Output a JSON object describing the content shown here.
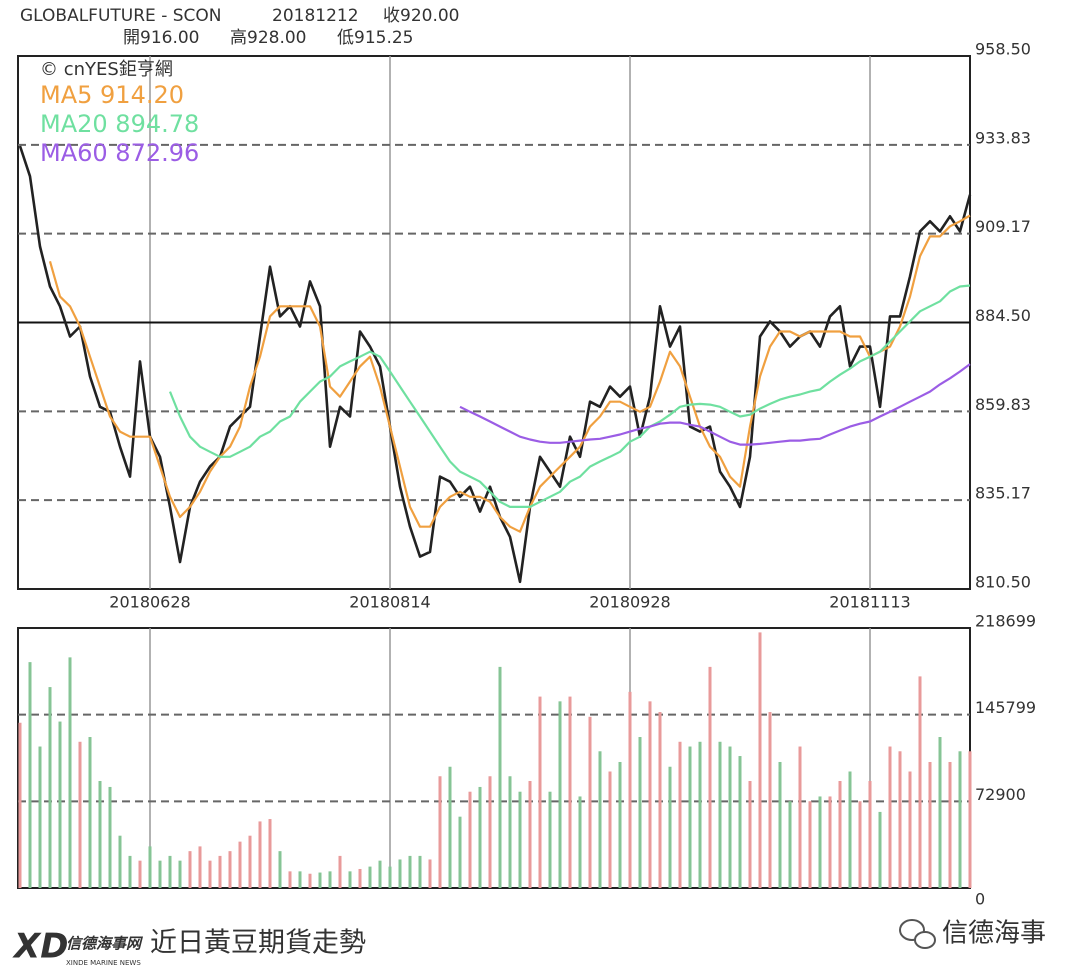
{
  "header": {
    "symbol": "GLOBALFUTURE - SCON",
    "date": "20181212",
    "close": "收920.00",
    "open": "開916.00",
    "high": "高928.00",
    "low": "低915.25"
  },
  "chart_data": [
    {
      "type": "line",
      "source": "© cnYES鉅亨網",
      "categories": [
        null,
        null,
        null,
        null,
        null,
        null,
        null,
        null,
        null,
        null,
        null,
        null,
        null,
        "20180628",
        null,
        null,
        null,
        null,
        null,
        null,
        null,
        null,
        null,
        null,
        null,
        null,
        null,
        null,
        null,
        null,
        null,
        null,
        null,
        null,
        null,
        null,
        null,
        "20180814",
        null,
        null,
        null,
        null,
        null,
        null,
        null,
        null,
        null,
        null,
        null,
        null,
        null,
        null,
        null,
        null,
        null,
        null,
        null,
        null,
        null,
        null,
        null,
        "20180928",
        null,
        null,
        null,
        null,
        null,
        null,
        null,
        null,
        null,
        null,
        null,
        null,
        null,
        null,
        null,
        null,
        null,
        null,
        null,
        null,
        null,
        null,
        null,
        "20181113",
        null,
        null,
        null,
        null,
        null,
        null,
        null,
        null,
        null,
        null
      ],
      "series": [
        {
          "color": "#222222",
          "values": [
            933.5,
            925.1,
            905.6,
            894.5,
            889,
            880.6,
            883.4,
            869.5,
            861.1,
            859.7,
            850,
            841.7,
            873.7,
            852.8,
            847.2,
            833.3,
            818,
            833.3,
            840.3,
            844.5,
            847.2,
            855.6,
            858.4,
            861.1,
            880.6,
            900,
            886.2,
            889,
            883.4,
            895.9,
            889,
            850,
            861.1,
            858.4,
            882,
            877.8,
            872.3,
            855.6,
            838.9,
            827.8,
            819.5,
            820.8,
            841.7,
            840.3,
            836.1,
            838.9,
            832,
            838.9,
            830.5,
            825,
            812.5,
            833.3,
            847.2,
            843.1,
            838.9,
            852.8,
            847.2,
            862.5,
            861.1,
            866.7,
            863.9,
            866.7,
            852.8,
            863.9,
            889,
            877.8,
            883.4,
            855.6,
            854.2,
            855.6,
            843.1,
            838.9,
            833.3,
            847.2,
            880.6,
            884.8,
            882,
            877.8,
            880.6,
            882,
            877.8,
            886.2,
            889,
            872.3,
            877.8,
            877.8,
            861.1,
            886.2,
            886.2,
            897.3,
            909.8,
            912.6,
            909.8,
            914,
            909.8,
            920
          ]
        },
        {
          "name": "MA5 914.20",
          "color": "#f0a040",
          "values": [
            null,
            null,
            null,
            901.5,
            891.7,
            889,
            883.4,
            875,
            866.7,
            858.4,
            854.2,
            852.8,
            852.8,
            852.8,
            844.5,
            836.1,
            830.5,
            833.3,
            837.5,
            843.1,
            847.2,
            850,
            855.6,
            866.7,
            875,
            886.2,
            889,
            889,
            889,
            889,
            883.4,
            866.7,
            863.9,
            868.1,
            872.3,
            875,
            866.7,
            855.6,
            844.5,
            833.3,
            827.8,
            827.8,
            833.3,
            836.1,
            837.5,
            836.1,
            836.1,
            834.7,
            830.5,
            827.8,
            826.4,
            833.3,
            838.9,
            841.7,
            844.5,
            847.2,
            850,
            855.6,
            858.4,
            862.5,
            862.5,
            861.1,
            859.7,
            861.1,
            868.1,
            876.4,
            872.3,
            863.9,
            855.6,
            850,
            847.2,
            841.7,
            838.9,
            855.6,
            869.5,
            877.8,
            882,
            882,
            880.6,
            882,
            882,
            882,
            882,
            880.6,
            880.6,
            875,
            876.4,
            877.8,
            883.4,
            891.7,
            902.9,
            908.4,
            908.4,
            911.2,
            912.6,
            914.2
          ]
        },
        {
          "name": "MA20 894.78",
          "color": "#6fe0a0",
          "values": [
            null,
            null,
            null,
            null,
            null,
            null,
            null,
            null,
            null,
            null,
            null,
            null,
            null,
            null,
            null,
            865.3,
            858.4,
            852.8,
            850,
            848.6,
            847.2,
            847.2,
            848.6,
            850,
            852.8,
            854.2,
            857,
            858.4,
            862.5,
            865.3,
            868.1,
            869.5,
            872.3,
            873.7,
            875,
            876.4,
            875,
            870.9,
            866.7,
            862.5,
            858.4,
            854.2,
            850,
            845.9,
            843.1,
            841.7,
            840.3,
            837.5,
            834.7,
            833.3,
            833.3,
            833.3,
            834.7,
            836.1,
            837.5,
            840.3,
            841.7,
            844.5,
            845.9,
            847.2,
            848.6,
            851.4,
            852.8,
            855.6,
            857,
            858.9,
            861.1,
            861.7,
            861.9,
            861.7,
            861.1,
            859.7,
            858.4,
            858.9,
            860.6,
            861.9,
            863.1,
            863.9,
            864.5,
            865.3,
            865.9,
            868.1,
            870,
            871.7,
            873.7,
            875,
            876.4,
            879.2,
            882,
            884.8,
            887.6,
            889,
            890.4,
            893.1,
            894.5,
            894.78
          ]
        },
        {
          "name": "MA60 872.96",
          "color": "#9b5de5",
          "values": [
            null,
            null,
            null,
            null,
            null,
            null,
            null,
            null,
            null,
            null,
            null,
            null,
            null,
            null,
            null,
            null,
            null,
            null,
            null,
            null,
            null,
            null,
            null,
            null,
            null,
            null,
            null,
            null,
            null,
            null,
            null,
            null,
            null,
            null,
            null,
            null,
            null,
            null,
            null,
            null,
            null,
            null,
            null,
            null,
            861.1,
            859.7,
            858.4,
            857,
            855.6,
            854.2,
            852.8,
            852,
            851.4,
            851.1,
            851.1,
            851.4,
            851.7,
            852,
            852.2,
            852.8,
            853.4,
            854.2,
            855,
            855.6,
            856.4,
            856.7,
            856.7,
            856.1,
            855.6,
            854.2,
            852.8,
            851.4,
            850.6,
            850.6,
            850.8,
            851.1,
            851.4,
            851.7,
            851.7,
            852,
            852.2,
            853.4,
            854.5,
            855.6,
            856.4,
            857,
            858.4,
            859.7,
            861.1,
            862.5,
            863.9,
            865.3,
            867.3,
            869,
            870.9,
            872.96
          ]
        }
      ],
      "ylim": [
        810.5,
        958.5
      ],
      "yticks": [
        {
          "value": 810.5,
          "label": "810.50"
        },
        835.17,
        859.83,
        {
          "value": 884.5,
          "label": "884.50"
        },
        909.17,
        933.83,
        {
          "value": 958.5,
          "label": "958.50"
        }
      ],
      "grid": true
    },
    {
      "type": "bar",
      "up_color": "#e89a9a",
      "down_color": "#86c495",
      "values": [
        139000,
        190000,
        119000,
        169000,
        140000,
        194000,
        123000,
        127000,
        90000,
        85000,
        44000,
        27000,
        23000,
        35000,
        23000,
        27000,
        23000,
        31000,
        35000,
        23000,
        27000,
        31000,
        39000,
        44000,
        56000,
        58000,
        31000,
        14000,
        14000,
        12000,
        13000,
        14000,
        27000,
        14000,
        16000,
        18000,
        23000,
        18000,
        24000,
        27000,
        27000,
        24000,
        94000,
        102000,
        60000,
        81000,
        85000,
        94000,
        186000,
        94000,
        81000,
        90000,
        161000,
        81000,
        157000,
        161000,
        77000,
        144000,
        115000,
        98000,
        106000,
        165000,
        127000,
        157000,
        148000,
        102000,
        123000,
        119000,
        123000,
        186000,
        123000,
        119000,
        111000,
        90000,
        215000,
        148000,
        106000,
        73000,
        119000,
        73000,
        77000,
        77000,
        90000,
        98000,
        73000,
        90000,
        64000,
        119000,
        115000,
        98000,
        178000,
        106000,
        127000,
        106000,
        115000,
        115000
      ],
      "ylim": [
        0,
        218699
      ],
      "yticks": [
        0,
        72900,
        145799,
        218699
      ],
      "grid": true
    }
  ],
  "footer": {
    "caption": "近日黃豆期貨走勢",
    "brand": "信德海事",
    "logo": "XD",
    "logo_text": "信德海事网",
    "logo_subtext": "XINDE MARINE NEWS"
  }
}
